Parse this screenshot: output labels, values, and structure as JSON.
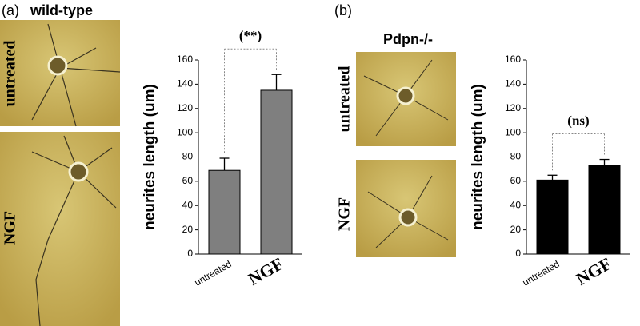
{
  "panels": [
    {
      "label": "(a)",
      "title": "wild-type",
      "image_labels": [
        "untreated",
        "NGF"
      ]
    },
    {
      "label": "(b)",
      "title": "Pdpn-/-",
      "image_labels": [
        "untreated",
        "NGF"
      ]
    }
  ],
  "chart_data": [
    {
      "type": "bar",
      "ylabel": "neurites length (um)",
      "categories": [
        "untreated",
        "NGF"
      ],
      "values": [
        69,
        135
      ],
      "errors": [
        10,
        13
      ],
      "color": "#7f7f7f",
      "ylim": [
        0,
        160
      ],
      "yticks": [
        0,
        20,
        40,
        60,
        80,
        100,
        120,
        140,
        160
      ],
      "annotation": "(**)"
    },
    {
      "type": "bar",
      "ylabel": "neurites length (um)",
      "categories": [
        "untreated",
        "NGF"
      ],
      "values": [
        61,
        73
      ],
      "errors": [
        4,
        5
      ],
      "color": "#000000",
      "ylim": [
        0,
        160
      ],
      "yticks": [
        0,
        20,
        40,
        60,
        80,
        100,
        120,
        140,
        160
      ],
      "annotation": "(ns)"
    }
  ]
}
